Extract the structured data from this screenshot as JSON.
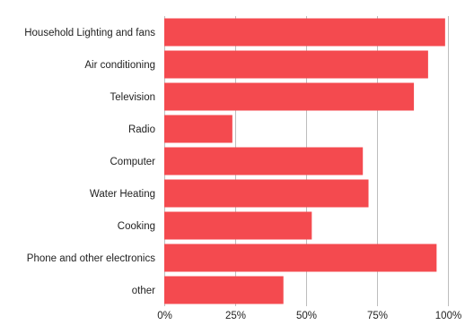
{
  "chart_data": {
    "type": "bar",
    "orientation": "horizontal",
    "categories": [
      "Household Lighting and fans",
      "Air conditioning",
      "Television",
      "Radio",
      "Computer",
      "Water Heating",
      "Cooking",
      "Phone and other electronics",
      "other"
    ],
    "values": [
      99,
      93,
      88,
      24,
      70,
      72,
      52,
      96,
      42
    ],
    "xlim": [
      0,
      100
    ],
    "xticks": [
      0,
      25,
      50,
      75,
      100
    ],
    "xtick_labels": [
      "0%",
      "25%",
      "50%",
      "75%",
      "100%"
    ],
    "title": "",
    "xlabel": "",
    "ylabel": "",
    "grid": true,
    "legend": "none",
    "bar_color": "#f44a4f",
    "grid_color": "#bdbdbd"
  }
}
